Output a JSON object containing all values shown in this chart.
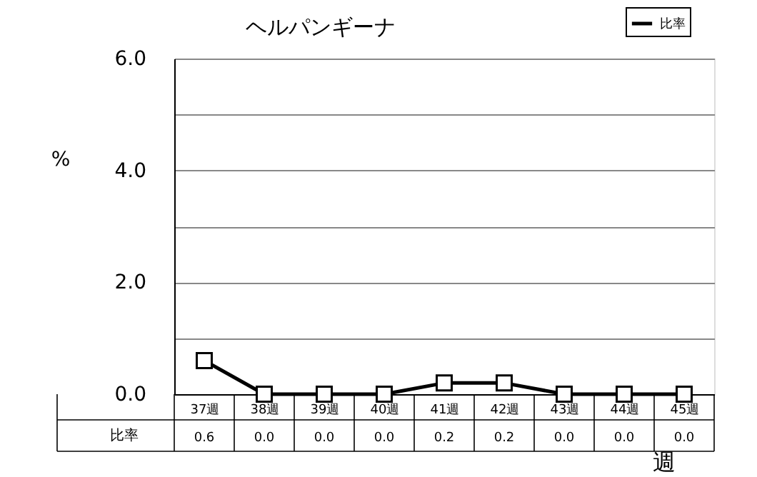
{
  "chart_data": {
    "type": "line",
    "title": "ヘルパンギーナ",
    "ylabel": "%",
    "xlabel": "週",
    "categories": [
      "37週",
      "38週",
      "39週",
      "40週",
      "41週",
      "42週",
      "43週",
      "44週",
      "45週"
    ],
    "series": [
      {
        "name": "比率",
        "color": "#000000",
        "values": [
          0.6,
          0.0,
          0.0,
          0.0,
          0.2,
          0.2,
          0.0,
          0.0,
          0.0
        ],
        "value_labels": [
          "0.6",
          "0.0",
          "0.0",
          "0.0",
          "0.2",
          "0.2",
          "0.0",
          "0.0",
          "0.0"
        ]
      }
    ],
    "ylim": [
      0,
      6
    ],
    "yticks": [
      {
        "value": 0,
        "label": "0.0"
      },
      {
        "value": 1,
        "label": null
      },
      {
        "value": 2,
        "label": "2.0"
      },
      {
        "value": 3,
        "label": null
      },
      {
        "value": 4,
        "label": "4.0"
      },
      {
        "value": 5,
        "label": null
      },
      {
        "value": 6,
        "label": "6.0"
      }
    ],
    "grid": "y",
    "legend": "top right",
    "marker": "square",
    "line_style": "solid"
  }
}
